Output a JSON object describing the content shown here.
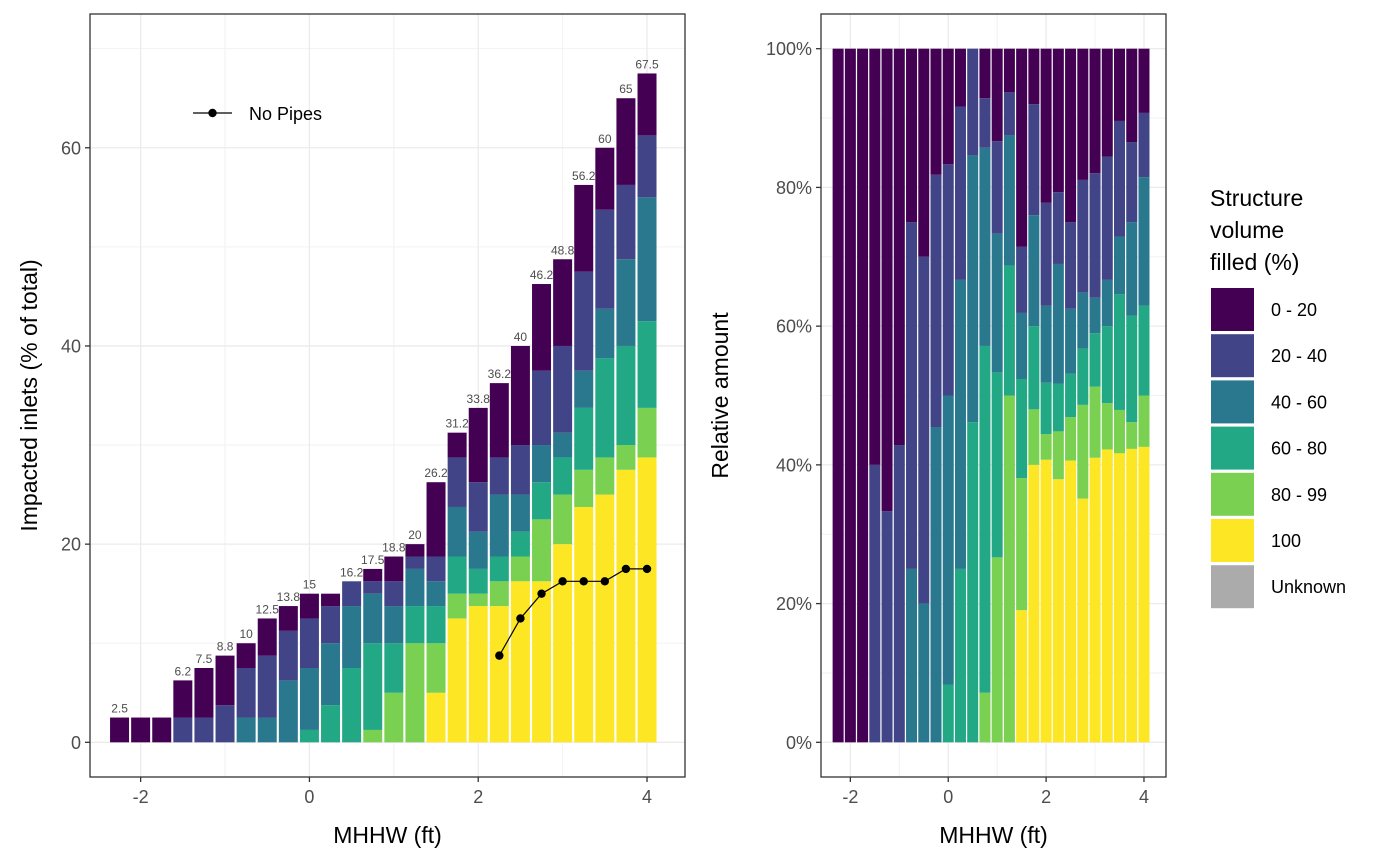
{
  "chart_data": [
    {
      "type": "bar",
      "stacked": true,
      "xlabel": "MHHW (ft)",
      "ylabel": "Impacted inlets (% of total)",
      "xlim": [
        -2.6,
        4.45
      ],
      "ylim": [
        -3.5,
        73.5
      ],
      "x_ticks": [
        -2,
        0,
        2,
        4
      ],
      "x_tick_labels": [
        "-2",
        "0",
        "2",
        "4"
      ],
      "y_ticks": [
        0,
        20,
        40,
        60
      ],
      "y_tick_labels": [
        "0",
        "20",
        "40",
        "60"
      ],
      "grid": true,
      "x": [
        -2.25,
        -2.0,
        -1.75,
        -1.5,
        -1.25,
        -1.0,
        -0.75,
        -0.5,
        -0.25,
        0.0,
        0.25,
        0.5,
        0.75,
        1.0,
        1.25,
        1.5,
        1.75,
        2.0,
        2.25,
        2.5,
        2.75,
        3.0,
        3.25,
        3.5,
        3.75,
        4.0
      ],
      "bar_labels": [
        "2.5",
        "",
        "",
        "6.2",
        "7.5",
        "8.8",
        "10",
        "12.5",
        "13.8",
        "15",
        "",
        "16.2",
        "17.5",
        "18.8",
        "20",
        "26.2",
        "31.2",
        "33.8",
        "36.2",
        "40",
        "46.2",
        "48.8",
        "56.2",
        "60",
        "65",
        "67.5"
      ],
      "series": [
        {
          "name": "100",
          "values": [
            0,
            0,
            0,
            0,
            0,
            0,
            0,
            0,
            0,
            0,
            0,
            0,
            0,
            0,
            0,
            5,
            12.5,
            13.75,
            13.75,
            16.25,
            16.25,
            20,
            23.75,
            25,
            27.5,
            28.75
          ]
        },
        {
          "name": "80 - 99",
          "values": [
            0,
            0,
            0,
            0,
            0,
            0,
            0,
            0,
            0,
            0,
            0,
            0,
            1.25,
            5,
            10,
            5,
            2.5,
            1.25,
            2.5,
            2.5,
            6.25,
            5,
            3.75,
            3.75,
            2.5,
            5
          ]
        },
        {
          "name": "60 - 80",
          "values": [
            0,
            0,
            0,
            0,
            0,
            0,
            0,
            0,
            0,
            1.25,
            3.75,
            7.5,
            8.75,
            5,
            3.75,
            3.75,
            3.75,
            2.5,
            2.5,
            2.5,
            3.75,
            3.75,
            6.25,
            10,
            10,
            8.75
          ]
        },
        {
          "name": "40 - 60",
          "values": [
            0,
            0,
            0,
            0,
            0,
            0,
            2.5,
            2.5,
            6.25,
            6.25,
            6.25,
            6.25,
            5,
            3.75,
            3.75,
            2.5,
            5,
            3.75,
            6.25,
            3.75,
            3.75,
            2.5,
            3.75,
            5,
            8.75,
            12.5
          ]
        },
        {
          "name": "20 - 40",
          "values": [
            0,
            0,
            0,
            2.5,
            2.5,
            3.75,
            5,
            6.25,
            5,
            5,
            3.75,
            2.5,
            1.25,
            2.5,
            1.25,
            2.5,
            5,
            5,
            3.75,
            5,
            7.5,
            8.75,
            10,
            10,
            7.5,
            6.25
          ]
        },
        {
          "name": "0 - 20",
          "values": [
            2.5,
            2.5,
            2.5,
            3.75,
            5,
            5,
            2.5,
            3.75,
            2.5,
            2.5,
            1.25,
            0,
            1.25,
            2.5,
            1.25,
            7.5,
            2.5,
            7.5,
            7.5,
            10,
            8.75,
            8.75,
            8.75,
            6.25,
            8.75,
            6.25
          ]
        }
      ],
      "line_series": {
        "name": "No Pipes",
        "x": [
          2.25,
          2.5,
          2.75,
          3.0,
          3.25,
          3.5,
          3.75,
          4.0
        ],
        "y": [
          8.75,
          12.5,
          15,
          16.25,
          16.25,
          16.25,
          17.5,
          17.5
        ]
      },
      "legend": {
        "entries": [
          "No Pipes"
        ],
        "position": "top-left inside"
      }
    },
    {
      "type": "bar",
      "stacked": true,
      "normalized": true,
      "xlabel": "MHHW (ft)",
      "ylabel": "Relative amount",
      "xlim": [
        -2.6,
        4.45
      ],
      "ylim": [
        -0.05,
        1.05
      ],
      "x_ticks": [
        -2,
        0,
        2,
        4
      ],
      "x_tick_labels": [
        "-2",
        "0",
        "2",
        "4"
      ],
      "y_ticks": [
        0,
        0.2,
        0.4,
        0.6,
        0.8,
        1.0
      ],
      "y_tick_labels": [
        "0%",
        "20%",
        "40%",
        "60%",
        "80%",
        "100%"
      ],
      "grid": true,
      "x": [
        -2.25,
        -2.0,
        -1.75,
        -1.5,
        -1.25,
        -1.0,
        -0.75,
        -0.5,
        -0.25,
        0.0,
        0.25,
        0.5,
        0.75,
        1.0,
        1.25,
        1.5,
        1.75,
        2.0,
        2.25,
        2.5,
        2.75,
        3.0,
        3.25,
        3.5,
        3.75,
        4.0
      ],
      "series_ref": "same as panel 1 (proportions of each bar total)"
    }
  ],
  "legend": {
    "title_lines": [
      "Structure",
      "volume",
      "filled (%)"
    ],
    "entries": [
      {
        "label": "0 - 20",
        "color": "#440154"
      },
      {
        "label": "20 - 40",
        "color": "#414487"
      },
      {
        "label": "40 - 60",
        "color": "#2A788E"
      },
      {
        "label": "60 - 80",
        "color": "#22A884"
      },
      {
        "label": "80 - 99",
        "color": "#7AD151"
      },
      {
        "label": "100",
        "color": "#FDE725"
      },
      {
        "label": "Unknown",
        "color": "#ABABAB"
      }
    ]
  }
}
